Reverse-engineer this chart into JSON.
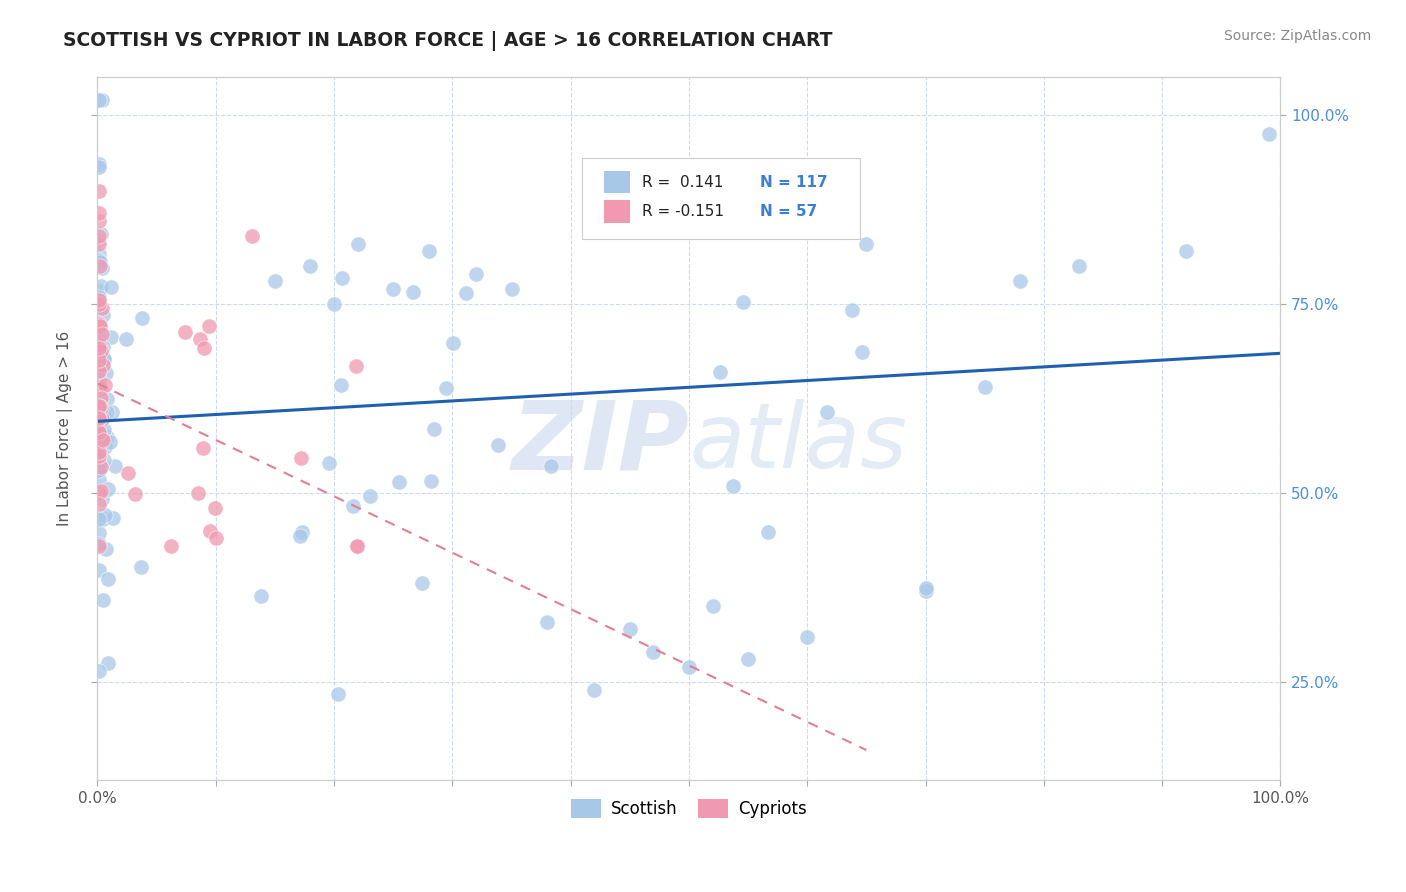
{
  "title": "SCOTTISH VS CYPRIOT IN LABOR FORCE | AGE > 16 CORRELATION CHART",
  "source_text": "Source: ZipAtlas.com",
  "ylabel": "In Labor Force | Age > 16",
  "xlim": [
    0,
    1
  ],
  "ylim": [
    0.12,
    1.05
  ],
  "x_ticks": [
    0.0,
    0.1,
    0.2,
    0.3,
    0.4,
    0.5,
    0.6,
    0.7,
    0.8,
    0.9,
    1.0
  ],
  "y_ticks": [
    0.25,
    0.5,
    0.75,
    1.0
  ],
  "x_tick_labels_show": [
    "0.0%",
    "100.0%"
  ],
  "y_tick_labels_right": [
    "25.0%",
    "50.0%",
    "75.0%",
    "100.0%"
  ],
  "legend_R_blue": "0.141",
  "legend_N_blue": "117",
  "legend_R_pink": "-0.151",
  "legend_N_pink": "57",
  "blue_color": "#a8c8e8",
  "pink_color": "#f099b0",
  "trend_blue_color": "#2060b0",
  "trend_pink_color": "#e08090",
  "grid_color": "#c8d8ec",
  "background_color": "#ffffff",
  "watermark_color": "#c8d8ec",
  "blue_trend_x": [
    0.0,
    1.0
  ],
  "blue_trend_y": [
    0.595,
    0.685
  ],
  "pink_trend_x": [
    0.0,
    0.65
  ],
  "pink_trend_y": [
    0.645,
    0.16
  ]
}
